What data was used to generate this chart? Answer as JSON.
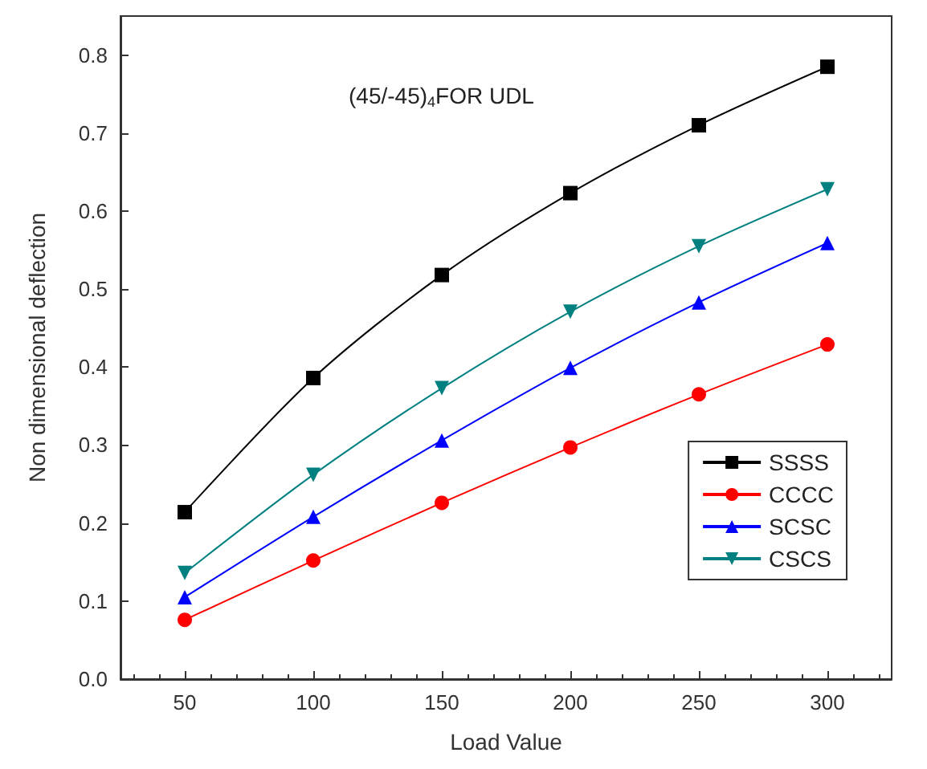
{
  "chart_data": {
    "type": "line",
    "title": "(45/-45)$_{4}$FOR UDL",
    "xlabel": "Load Value",
    "ylabel": "Non dimensional deflection",
    "x": [
      50,
      100,
      150,
      200,
      250,
      300
    ],
    "series": [
      {
        "name": "SSSS",
        "color": "#000000",
        "marker": "square",
        "values": [
          0.214,
          0.386,
          0.518,
          0.623,
          0.71,
          0.785
        ]
      },
      {
        "name": "CCCC",
        "color": "#ff0000",
        "marker": "circle",
        "values": [
          0.076,
          0.152,
          0.226,
          0.297,
          0.365,
          0.429
        ]
      },
      {
        "name": "SCSC",
        "color": "#0000ff",
        "marker": "triangle",
        "values": [
          0.105,
          0.208,
          0.306,
          0.399,
          0.483,
          0.559
        ]
      },
      {
        "name": "CSCS",
        "color": "#008080",
        "marker": "triangle-down",
        "values": [
          0.136,
          0.262,
          0.373,
          0.471,
          0.555,
          0.628
        ]
      }
    ],
    "xlim": [
      25,
      325
    ],
    "xticks": [
      50,
      100,
      150,
      200,
      250,
      300
    ],
    "ylim": [
      0,
      0.85
    ],
    "yticks": [
      {
        "value": 0,
        "label": "0.0"
      },
      0.1,
      0.2,
      0.3,
      0.4,
      0.5,
      0.6,
      0.7,
      0.8
    ],
    "grid": false,
    "legend": "bottom right",
    "line_style": "solid"
  }
}
